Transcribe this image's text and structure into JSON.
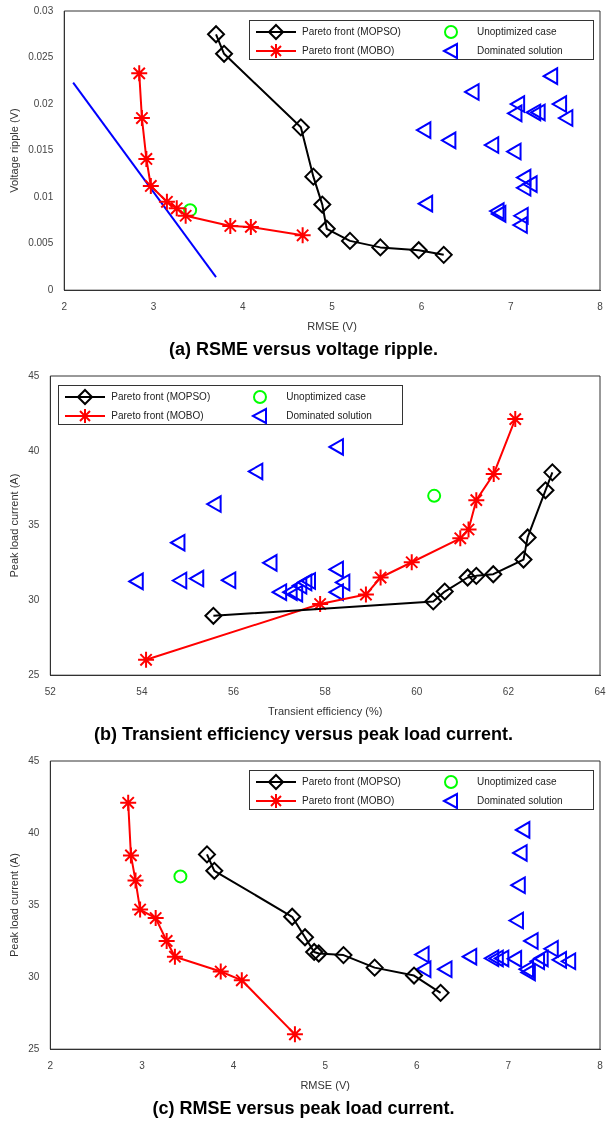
{
  "chart_data": [
    {
      "type": "scatter",
      "title": "(a) RSME versus voltage ripple.",
      "xlabel": "RMSE (V)",
      "ylabel": "Voltage ripple (V)",
      "xlim": [
        2,
        8
      ],
      "xticks": [
        2,
        3,
        4,
        5,
        6,
        7,
        8
      ],
      "ylim": [
        0,
        0.03
      ],
      "yticks": [
        0,
        0.005,
        0.01,
        0.015,
        0.02,
        0.025,
        0.03
      ],
      "grid": false,
      "legend": "top right",
      "line_style": "solid",
      "series": [
        {
          "name": "Pareto front (MOPSO)",
          "type": "line",
          "marker": "diamond",
          "color": "#000000",
          "x": [
            3.7,
            3.79,
            4.65,
            4.79,
            4.89,
            4.94,
            5.2,
            5.54,
            5.97,
            6.25
          ],
          "values": [
            0.0275,
            0.0254,
            0.0175,
            0.0122,
            0.0092,
            0.0066,
            0.0053,
            0.0046,
            0.0043,
            0.0038
          ]
        },
        {
          "name": "Pareto front (MOBO)",
          "type": "line",
          "marker": "cross",
          "color": "#ff0000",
          "x": [
            2.84,
            2.87,
            2.92,
            2.97,
            3.15,
            3.26,
            3.36,
            3.86,
            4.09,
            4.67
          ],
          "values": [
            0.0233,
            0.0185,
            0.0141,
            0.0112,
            0.0095,
            0.0088,
            0.008,
            0.0069,
            0.0068,
            0.0059
          ]
        },
        {
          "name": "Unoptimized case",
          "type": "scatter",
          "marker": "circle",
          "color": "#00ff00",
          "x": [
            3.41
          ],
          "values": [
            0.0086
          ]
        },
        {
          "name": "Dominated solution",
          "type": "scatter",
          "marker": "triangle",
          "color": "#0000ff",
          "x": [
            7.47,
            6.59,
            7.1,
            7.57,
            7.07,
            7.28,
            7.33,
            7.64,
            6.05,
            6.33,
            6.81,
            7.06,
            7.17,
            7.24,
            7.17,
            6.07,
            6.87,
            6.89,
            7.14,
            7.13
          ],
          "values": [
            0.023,
            0.0213,
            0.02,
            0.02,
            0.019,
            0.0191,
            0.0191,
            0.0185,
            0.0172,
            0.0161,
            0.0156,
            0.0149,
            0.0121,
            0.0114,
            0.011,
            0.0093,
            0.0085,
            0.0082,
            0.008,
            0.007
          ]
        },
        {
          "type": "line",
          "marker": "none",
          "color": "#0000ff",
          "x": [
            2.1,
            3.7
          ],
          "values": [
            0.0223,
            0.0014
          ]
        }
      ]
    },
    {
      "type": "scatter",
      "title": "(b) Transient efficiency versus peak load current.",
      "xlabel": "Transient efficiency (%)",
      "ylabel": "Peak load current (A)",
      "xlim": [
        52,
        64
      ],
      "xticks": [
        52,
        54,
        56,
        58,
        60,
        62,
        64
      ],
      "ylim": [
        25,
        45
      ],
      "yticks": [
        25,
        30,
        35,
        40,
        45
      ],
      "grid": false,
      "legend": "top left",
      "line_style": "solid",
      "series": [
        {
          "name": "Pareto front (MOPSO)",
          "type": "line",
          "marker": "diamond",
          "color": "#000000",
          "x": [
            55.56,
            60.36,
            60.61,
            61.11,
            61.3,
            61.67,
            62.33,
            62.42,
            62.81,
            62.96
          ],
          "values": [
            28.97,
            29.93,
            30.59,
            31.53,
            31.64,
            31.75,
            32.73,
            34.21,
            37.36,
            38.56
          ]
        },
        {
          "name": "Pareto front (MOBO)",
          "type": "line",
          "marker": "cross",
          "color": "#ff0000",
          "x": [
            54.09,
            57.89,
            58.89,
            59.21,
            59.89,
            60.95,
            61.13,
            61.3,
            61.68,
            62.15
          ],
          "values": [
            26.03,
            29.76,
            30.39,
            31.53,
            32.55,
            34.15,
            34.74,
            36.7,
            38.45,
            42.12
          ]
        },
        {
          "name": "Unoptimized case",
          "type": "scatter",
          "marker": "circle",
          "color": "#00ff00",
          "x": [
            60.38
          ],
          "values": [
            36.99
          ]
        },
        {
          "name": "Dominated solution",
          "type": "scatter",
          "marker": "triangle",
          "color": "#0000ff",
          "x": [
            53.92,
            54.83,
            54.87,
            55.24,
            55.62,
            55.94,
            56.53,
            56.84,
            57.05,
            57.28,
            57.4,
            57.49,
            57.6,
            57.68,
            58.29,
            58.43,
            58.29,
            58.29
          ],
          "values": [
            31.27,
            33.86,
            31.33,
            31.46,
            36.44,
            31.35,
            38.62,
            32.51,
            30.55,
            30.55,
            30.45,
            30.98,
            31.2,
            31.3,
            32.07,
            31.2,
            30.55,
            40.26
          ]
        }
      ]
    },
    {
      "type": "scatter",
      "title": "(c) RMSE versus peak load current.",
      "xlabel": "RMSE (V)",
      "ylabel": "Peak load current (A)",
      "xlim": [
        2,
        8
      ],
      "xticks": [
        2,
        3,
        4,
        5,
        6,
        7,
        8
      ],
      "ylim": [
        25,
        45
      ],
      "yticks": [
        25,
        30,
        35,
        40,
        45
      ],
      "grid": false,
      "legend": "top right",
      "line_style": "solid",
      "series": [
        {
          "name": "Pareto front (MOPSO)",
          "type": "line",
          "marker": "diamond",
          "color": "#000000",
          "x": [
            3.71,
            3.79,
            4.64,
            4.78,
            4.88,
            4.93,
            5.2,
            5.54,
            5.97,
            6.26
          ],
          "values": [
            38.52,
            37.38,
            34.19,
            32.77,
            31.75,
            31.64,
            31.53,
            30.66,
            30.11,
            28.91
          ]
        },
        {
          "name": "Pareto front (MOBO)",
          "type": "line",
          "marker": "cross",
          "color": "#ff0000",
          "x": [
            2.85,
            2.88,
            2.93,
            2.98,
            3.15,
            3.27,
            3.36,
            3.86,
            4.09,
            4.67
          ],
          "values": [
            42.1,
            38.45,
            36.7,
            34.69,
            34.1,
            32.51,
            31.42,
            30.39,
            29.78,
            26.03
          ]
        },
        {
          "name": "Unoptimized case",
          "type": "scatter",
          "marker": "circle",
          "color": "#00ff00",
          "x": [
            3.42
          ],
          "values": [
            36.99
          ]
        },
        {
          "name": "Dominated solution",
          "type": "scatter",
          "marker": "triangle",
          "color": "#0000ff",
          "x": [
            7.18,
            7.15,
            7.13,
            7.11,
            7.27,
            7.49,
            6.08,
            6.6,
            6.84,
            6.89,
            6.95,
            7.09,
            7.34,
            7.58,
            7.68,
            6.1,
            6.33,
            7.22,
            7.24,
            7.38
          ],
          "values": [
            40.22,
            38.62,
            36.38,
            33.93,
            32.51,
            31.97,
            31.57,
            31.42,
            31.31,
            31.3,
            31.3,
            31.27,
            31.1,
            31.2,
            31.1,
            30.55,
            30.55,
            30.55,
            30.33,
            31.3
          ]
        }
      ]
    }
  ]
}
